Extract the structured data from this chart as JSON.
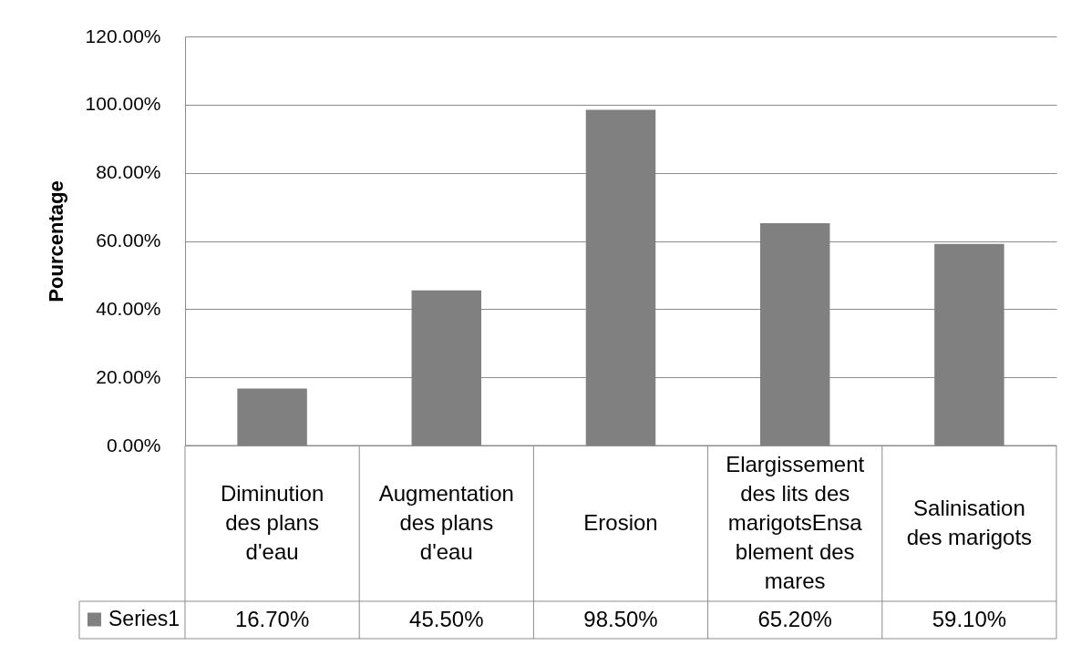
{
  "chart_data": {
    "type": "bar",
    "ylabel": "Pourcentage",
    "categories": [
      "Diminution des plans d'eau",
      "Augmentation des plans d'eau",
      "Erosion",
      "Elargissement des lits des marigotsEnsablement des mares",
      "Salinisation des marigots"
    ],
    "series": [
      {
        "name": "Series1",
        "color": "#808080",
        "values": [
          16.7,
          45.5,
          98.5,
          65.2,
          59.1
        ],
        "value_labels": [
          "16.70%",
          "45.50%",
          "98.50%",
          "65.20%",
          "59.10%"
        ]
      }
    ],
    "ylim": [
      0,
      120
    ],
    "yticks": [
      {
        "value": 0,
        "label": "0.00%"
      },
      {
        "value": 20,
        "label": "20.00%"
      },
      {
        "value": 40,
        "label": "40.00%"
      },
      {
        "value": 60,
        "label": "60.00%"
      },
      {
        "value": 80,
        "label": "80.00%"
      },
      {
        "value": 100,
        "label": "100.00%"
      },
      {
        "value": 120,
        "label": "120.00%"
      }
    ],
    "grid": "y",
    "legend": "bottom left"
  }
}
